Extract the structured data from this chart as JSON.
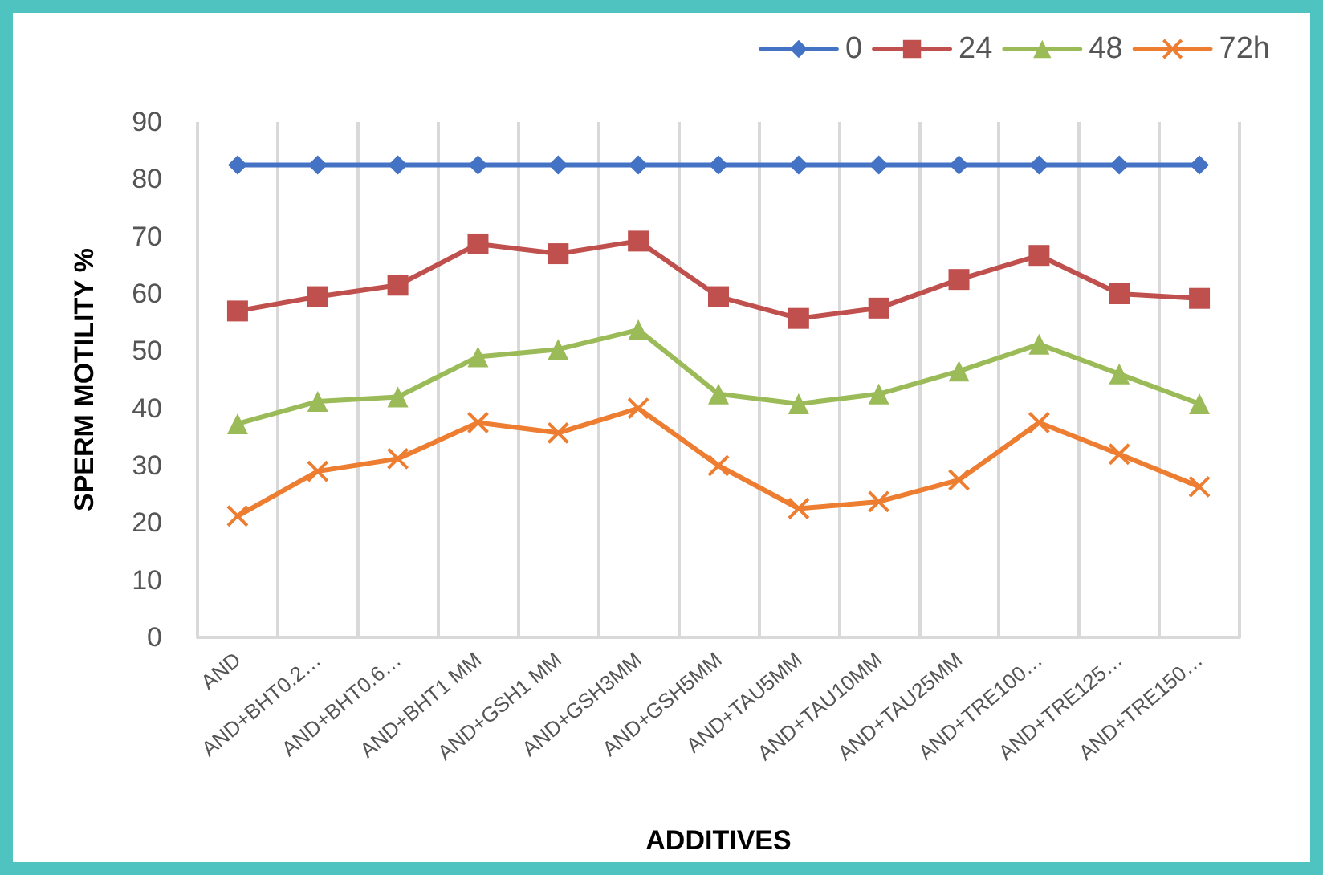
{
  "chart_data": {
    "type": "line",
    "xlabel": "ADDITIVES",
    "ylabel": "SPERM MOTILITY %",
    "categories": [
      "AND",
      "AND+BHT0.2…",
      "AND+BHT0.6…",
      "AND+BHT1 MM",
      "AND+GSH1 MM",
      "AND+GSH3MM",
      "AND+GSH5MM",
      "AND+TAU5MM",
      "AND+TAU10MM",
      "AND+TAU25MM",
      "AND+TRE100…",
      "AND+TRE125…",
      "AND+TRE150…"
    ],
    "series": [
      {
        "name": "0",
        "color": "#4472c4",
        "marker": "diamond",
        "values": [
          82.5,
          82.5,
          82.5,
          82.5,
          82.5,
          82.5,
          82.5,
          82.5,
          82.5,
          82.5,
          82.5,
          82.5,
          82.5
        ]
      },
      {
        "name": "24",
        "color": "#c0504d",
        "marker": "square",
        "values": [
          57,
          59.5,
          61.5,
          68.7,
          67,
          69.2,
          59.5,
          55.7,
          57.5,
          62.5,
          66.7,
          60,
          59.2
        ]
      },
      {
        "name": "48",
        "color": "#9bbb59",
        "marker": "triangle",
        "values": [
          37.3,
          41.2,
          42,
          49,
          50.3,
          53.7,
          42.5,
          40.8,
          42.5,
          46.5,
          51.2,
          46,
          40.8
        ]
      },
      {
        "name": "72h",
        "color": "#ed7d31",
        "marker": "cross",
        "values": [
          21.2,
          29,
          31.2,
          37.5,
          35.7,
          40,
          30,
          22.5,
          23.7,
          27.5,
          37.5,
          32,
          26.3
        ]
      }
    ],
    "ylim": [
      0,
      90
    ],
    "yticks": [
      0,
      10,
      20,
      30,
      40,
      50,
      60,
      70,
      80,
      90
    ],
    "grid": "x",
    "legend": "top right"
  }
}
